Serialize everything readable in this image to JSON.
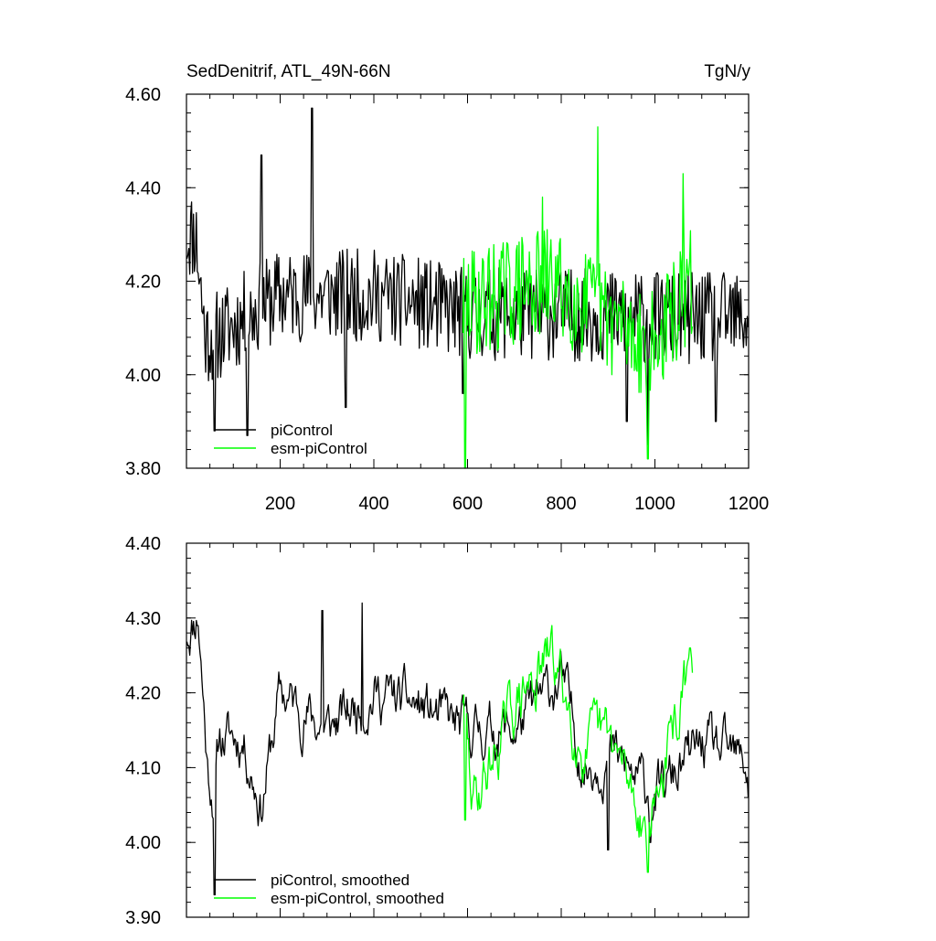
{
  "chart_data": [
    {
      "type": "line",
      "title": "SedDenitrif, ATL_49N-66N",
      "units": "TgN/y",
      "xlim": [
        0,
        1200
      ],
      "ylim": [
        3.8,
        4.6
      ],
      "x_ticks": [
        200,
        400,
        600,
        800,
        1000,
        1200
      ],
      "y_ticks": [
        "4.60",
        "4.40",
        "4.20",
        "4.00",
        "3.80"
      ],
      "legend": [
        {
          "name": "piControl",
          "color": "#000000"
        },
        {
          "name": "esm-piControl",
          "color": "#00ff00"
        }
      ],
      "series": [
        {
          "name": "piControl",
          "color": "#000000",
          "x_start": 1,
          "x_end": 1200,
          "mean": 4.13,
          "spread": 0.1,
          "seed": 11,
          "anchors": [
            [
              0,
              4.3
            ],
            [
              20,
              4.3
            ],
            [
              40,
              4.08
            ],
            [
              60,
              4.08
            ],
            [
              120,
              4.12
            ],
            [
              200,
              4.17
            ],
            [
              400,
              4.17
            ],
            [
              600,
              4.13
            ],
            [
              800,
              4.13
            ],
            [
              1000,
              4.12
            ],
            [
              1200,
              4.12
            ]
          ],
          "spikes": [
            [
              60,
              3.88
            ],
            [
              130,
              3.87
            ],
            [
              268,
              4.57
            ],
            [
              160,
              4.47
            ],
            [
              340,
              3.93
            ],
            [
              590,
              3.96
            ],
            [
              940,
              3.9
            ],
            [
              985,
              3.85
            ],
            [
              1130,
              3.9
            ]
          ]
        },
        {
          "name": "esm-piControl",
          "color": "#00ff00",
          "x_start": 590,
          "x_end": 1080,
          "mean": 4.15,
          "spread": 0.12,
          "seed": 29,
          "anchors": [
            [
              590,
              4.15
            ],
            [
              780,
              4.2
            ],
            [
              900,
              4.12
            ],
            [
              1000,
              4.06
            ],
            [
              1080,
              4.2
            ]
          ],
          "spikes": [
            [
              595,
              3.8
            ],
            [
              878,
              4.53
            ],
            [
              985,
              3.82
            ],
            [
              760,
              4.38
            ],
            [
              1060,
              4.43
            ]
          ]
        }
      ]
    },
    {
      "type": "line",
      "xlim": [
        0,
        1200
      ],
      "ylim": [
        3.9,
        4.4
      ],
      "y_ticks": [
        "4.40",
        "4.30",
        "4.20",
        "4.10",
        "4.00",
        "3.90"
      ],
      "legend": [
        {
          "name": "piControl, smoothed",
          "color": "#000000"
        },
        {
          "name": "esm-piControl, smoothed",
          "color": "#00ff00"
        }
      ],
      "series": [
        {
          "name": "piControl, smoothed",
          "color": "#000000",
          "x_start": 1,
          "x_end": 1200,
          "mean": 4.14,
          "spread": 0.045,
          "seed": 11,
          "anchors": [
            [
              0,
              4.28
            ],
            [
              25,
              4.31
            ],
            [
              45,
              4.1
            ],
            [
              60,
              4.06
            ],
            [
              70,
              4.14
            ],
            [
              120,
              4.14
            ],
            [
              160,
              4.05
            ],
            [
              200,
              4.2
            ],
            [
              300,
              4.15
            ],
            [
              400,
              4.2
            ],
            [
              500,
              4.18
            ],
            [
              590,
              4.15
            ],
            [
              700,
              4.15
            ],
            [
              800,
              4.22
            ],
            [
              850,
              4.1
            ],
            [
              900,
              4.12
            ],
            [
              1000,
              4.06
            ],
            [
              1100,
              4.13
            ],
            [
              1200,
              4.1
            ]
          ],
          "spikes": [
            [
              60,
              3.93
            ],
            [
              290,
              4.31
            ],
            [
              375,
              4.32
            ],
            [
              900,
              3.99
            ],
            [
              990,
              4.0
            ],
            [
              1200,
              4.06
            ]
          ]
        },
        {
          "name": "esm-piControl, smoothed",
          "color": "#00ff00",
          "x_start": 590,
          "x_end": 1080,
          "mean": 4.15,
          "spread": 0.05,
          "seed": 29,
          "anchors": [
            [
              590,
              4.2
            ],
            [
              610,
              4.05
            ],
            [
              700,
              4.18
            ],
            [
              780,
              4.25
            ],
            [
              850,
              4.12
            ],
            [
              900,
              4.14
            ],
            [
              985,
              4.02
            ],
            [
              1080,
              4.24
            ]
          ],
          "spikes": [
            [
              595,
              4.03
            ],
            [
              985,
              3.96
            ],
            [
              780,
              4.29
            ],
            [
              1075,
              4.26
            ]
          ]
        }
      ]
    }
  ]
}
